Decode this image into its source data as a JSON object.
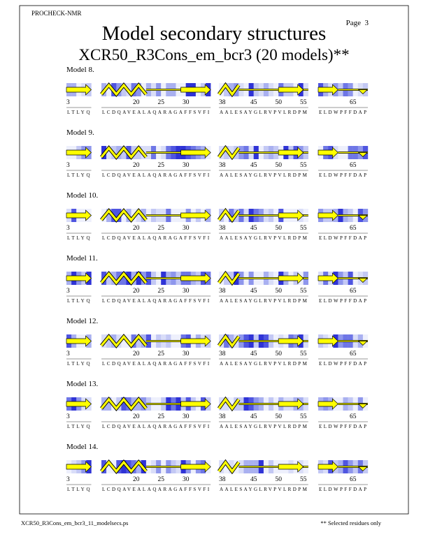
{
  "header": {
    "program": "PROCHECK-NMR",
    "page": "Page  3",
    "title": "Model secondary structures",
    "subtitle": "XCR50_R3Cons_em_bcr3 (20 models)**"
  },
  "segments": [
    {
      "sequence": "LTLYQ",
      "residue_numbers": [
        3
      ]
    },
    {
      "sequence": "LCDQAVEALAQARAGAFFSVFI",
      "residue_numbers": [
        20,
        25,
        30
      ]
    },
    {
      "sequence": "AALESAYGLRVPVLRDPM",
      "residue_numbers": [
        38,
        45,
        50,
        55
      ]
    },
    {
      "sequence": "ELDWPFFDAP",
      "residue_numbers": [
        65
      ]
    }
  ],
  "models": [
    "Model  8.",
    "Model  9.",
    "Model 10.",
    "Model 11.",
    "Model 12.",
    "Model 13.",
    "Model 14."
  ],
  "footer": {
    "file": "XCR50_R3Cons_em_bcr3_11_modelsecs.ps",
    "note": "** Selected residues only"
  }
}
